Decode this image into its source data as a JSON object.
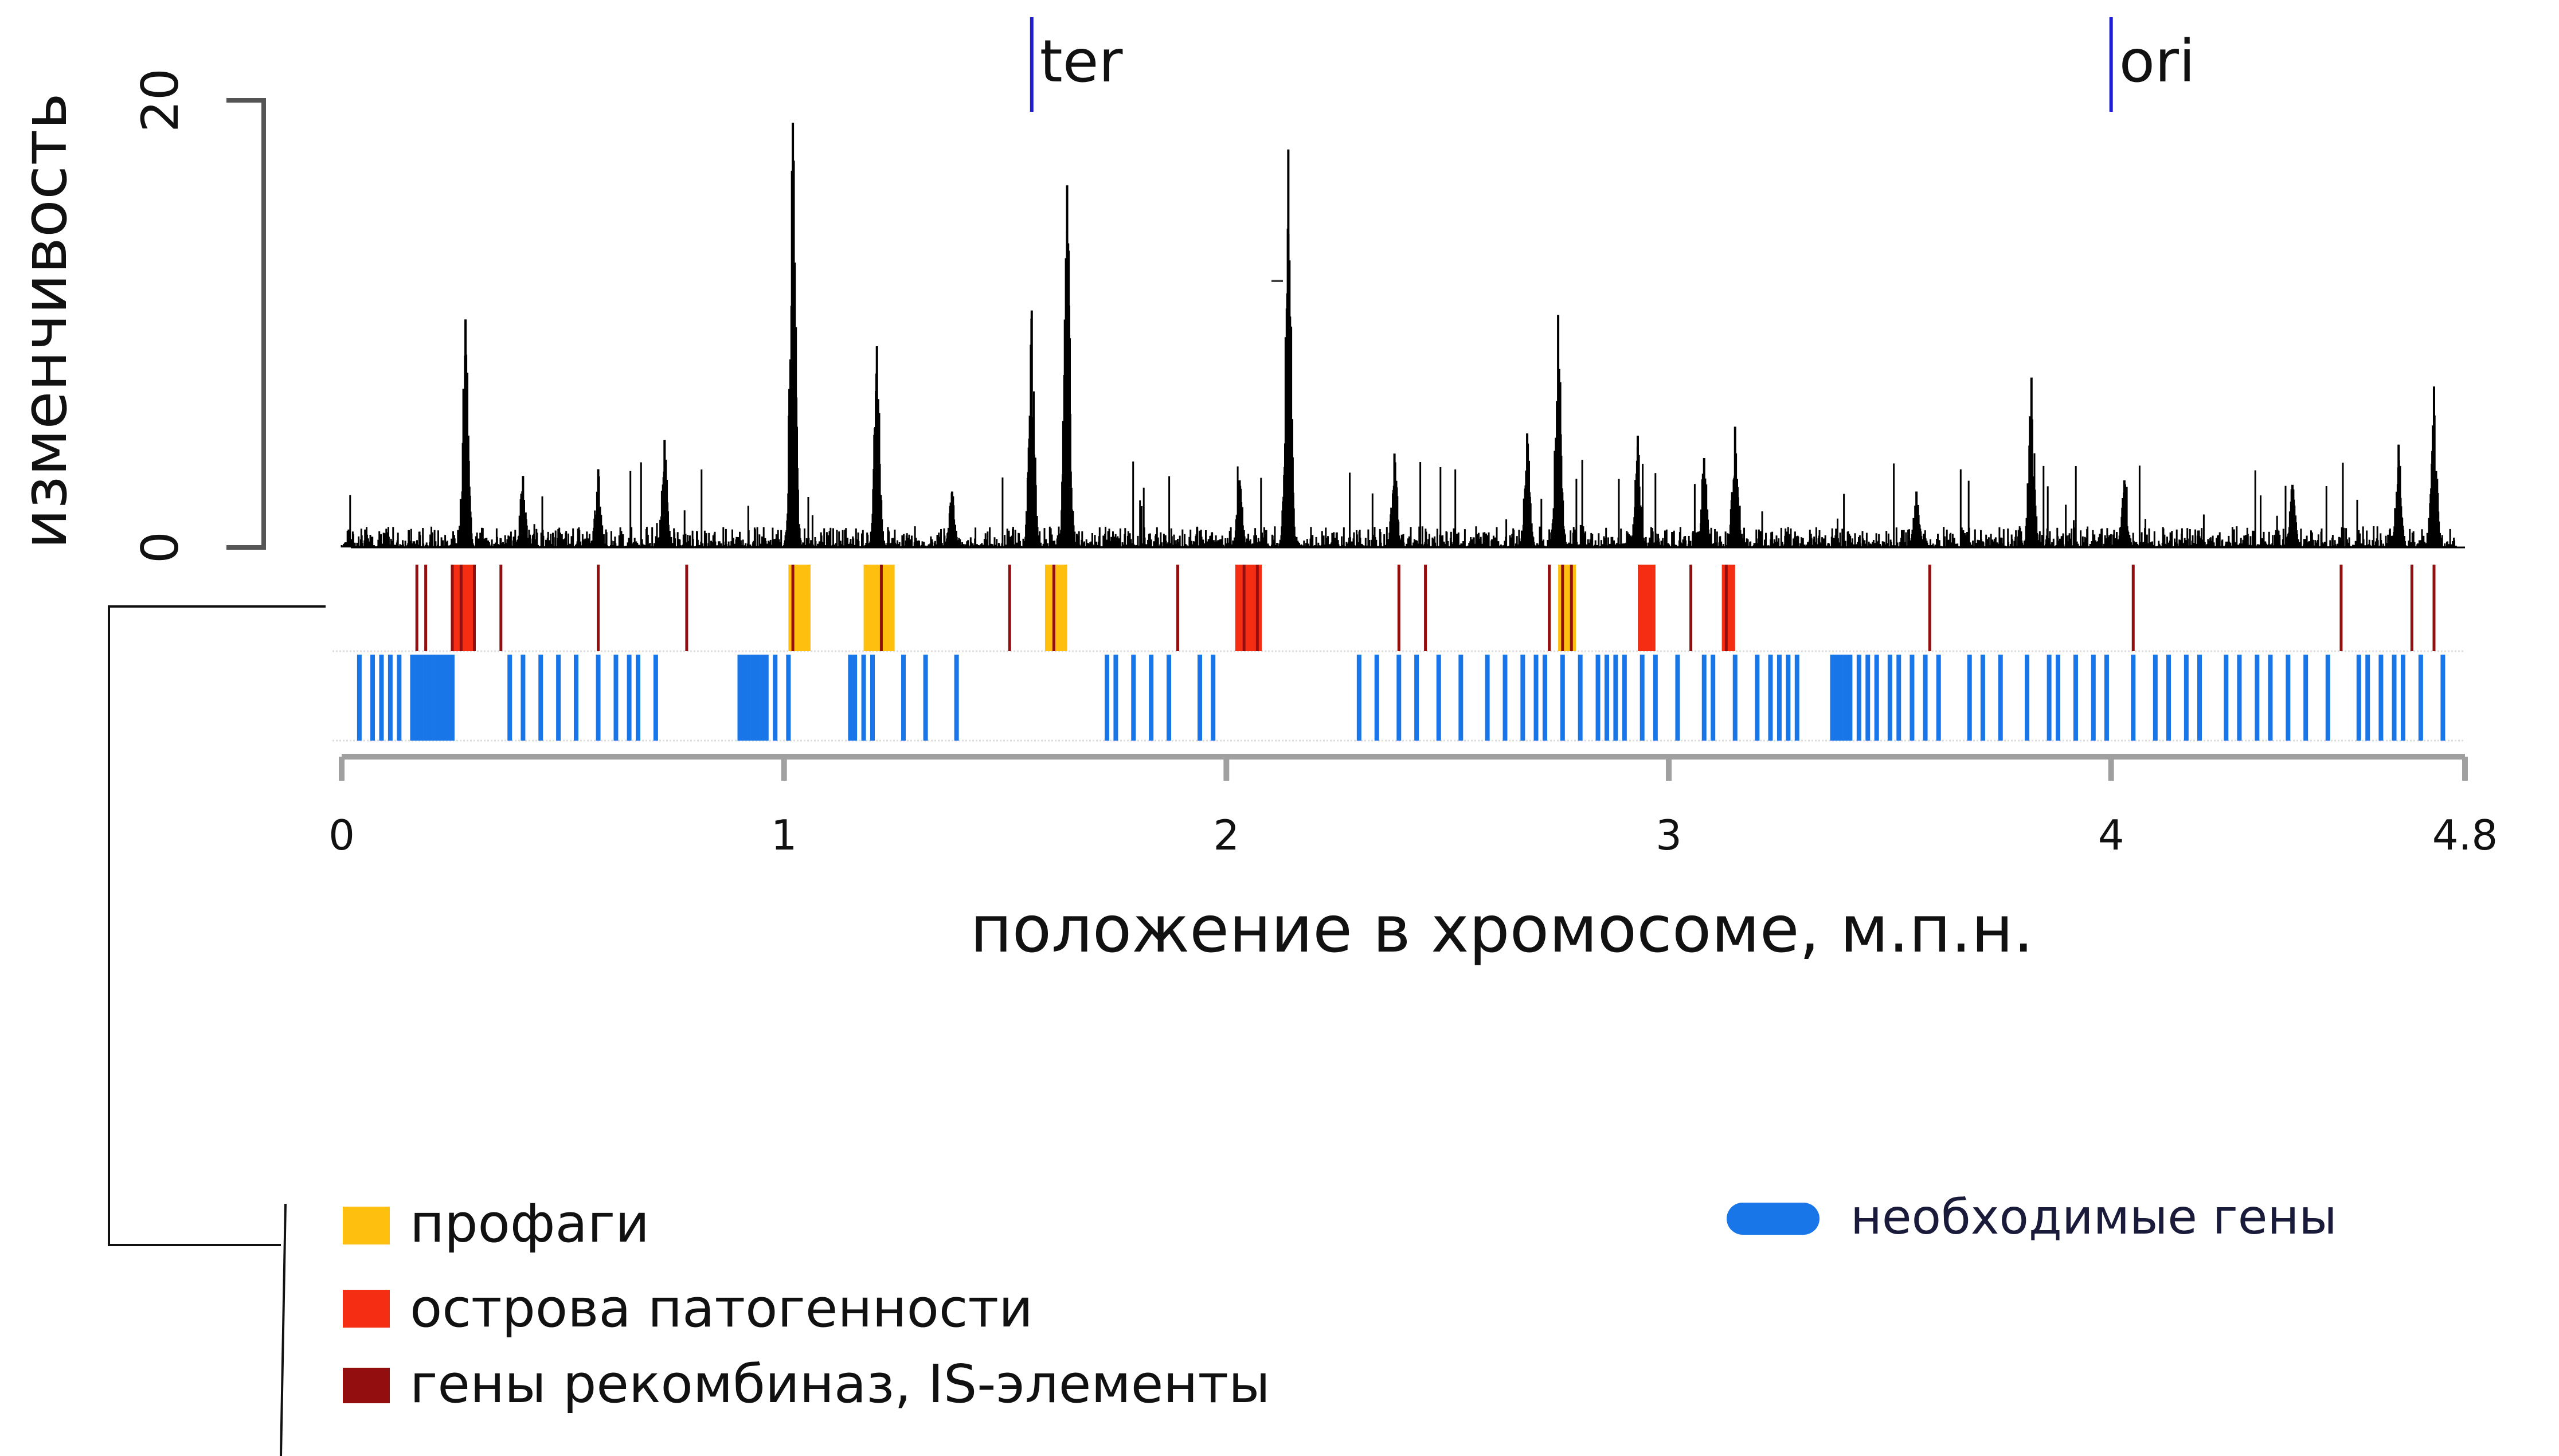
{
  "chart_data": {
    "type": "area",
    "title": "",
    "ylabel": "изменчивость",
    "xlabel": "положение в хромосоме, м.п.н.",
    "ylim": [
      0,
      20
    ],
    "xlim": [
      0,
      4.8
    ],
    "y_ticks": [
      {
        "value": 0,
        "label": "0"
      },
      {
        "value": 20,
        "label": "20"
      }
    ],
    "x_ticks": [
      {
        "value": 0,
        "label": "0"
      },
      {
        "value": 1,
        "label": "1"
      },
      {
        "value": 2,
        "label": "2"
      },
      {
        "value": 3,
        "label": "3"
      },
      {
        "value": 4,
        "label": "4"
      },
      {
        "value": 4.8,
        "label": "4.8"
      }
    ],
    "markers": [
      {
        "label": "ter",
        "x": 1.56
      },
      {
        "label": "ori",
        "x": 4.0
      }
    ],
    "peaks": [
      {
        "x": 0.28,
        "y": 10.2
      },
      {
        "x": 0.41,
        "y": 3.2
      },
      {
        "x": 0.58,
        "y": 3.5
      },
      {
        "x": 0.73,
        "y": 4.8
      },
      {
        "x": 1.02,
        "y": 19.0
      },
      {
        "x": 1.21,
        "y": 9.0
      },
      {
        "x": 1.38,
        "y": 2.5
      },
      {
        "x": 1.56,
        "y": 10.6
      },
      {
        "x": 1.64,
        "y": 16.2
      },
      {
        "x": 2.03,
        "y": 3.0
      },
      {
        "x": 2.14,
        "y": 17.8
      },
      {
        "x": 2.38,
        "y": 4.2
      },
      {
        "x": 2.68,
        "y": 5.1
      },
      {
        "x": 2.75,
        "y": 10.4
      },
      {
        "x": 2.93,
        "y": 5.0
      },
      {
        "x": 3.08,
        "y": 4.0
      },
      {
        "x": 3.15,
        "y": 5.4
      },
      {
        "x": 3.56,
        "y": 2.5
      },
      {
        "x": 3.82,
        "y": 7.6
      },
      {
        "x": 4.03,
        "y": 3.0
      },
      {
        "x": 4.41,
        "y": 2.8
      },
      {
        "x": 4.65,
        "y": 4.6
      },
      {
        "x": 4.73,
        "y": 7.2
      }
    ],
    "prophages": [
      [
        1.01,
        1.06
      ],
      [
        1.18,
        1.25
      ],
      [
        1.59,
        1.64
      ],
      [
        2.75,
        2.79
      ]
    ],
    "pathogenicity_islands": [
      [
        0.25,
        0.3
      ],
      [
        2.02,
        2.08
      ],
      [
        2.93,
        2.97
      ],
      [
        3.12,
        3.15
      ]
    ],
    "recombinase_genes": [
      0.17,
      0.19,
      0.25,
      0.27,
      0.3,
      0.36,
      0.58,
      0.78,
      1.02,
      1.22,
      1.51,
      1.61,
      1.89,
      2.04,
      2.07,
      2.39,
      2.45,
      2.73,
      2.76,
      2.78,
      3.05,
      3.13,
      3.59,
      4.05,
      4.52,
      4.68,
      4.73
    ],
    "essential_genes": [
      0.04,
      0.07,
      0.09,
      0.11,
      0.13,
      0.16,
      0.17,
      0.18,
      0.19,
      0.2,
      0.21,
      0.22,
      0.23,
      0.24,
      0.25,
      0.38,
      0.41,
      0.45,
      0.49,
      0.53,
      0.58,
      0.62,
      0.65,
      0.67,
      0.71,
      0.9,
      0.91,
      0.92,
      0.93,
      0.94,
      0.95,
      0.96,
      0.98,
      1.01,
      1.15,
      1.16,
      1.18,
      1.2,
      1.27,
      1.32,
      1.39,
      1.73,
      1.75,
      1.79,
      1.83,
      1.87,
      1.94,
      1.97,
      2.3,
      2.34,
      2.39,
      2.43,
      2.48,
      2.53,
      2.59,
      2.63,
      2.67,
      2.7,
      2.72,
      2.76,
      2.8,
      2.84,
      2.86,
      2.88,
      2.9,
      2.94,
      2.97,
      3.02,
      3.08,
      3.1,
      3.15,
      3.2,
      3.23,
      3.25,
      3.27,
      3.29,
      3.37,
      3.38,
      3.39,
      3.4,
      3.41,
      3.43,
      3.45,
      3.47,
      3.5,
      3.52,
      3.55,
      3.58,
      3.61,
      3.68,
      3.71,
      3.75,
      3.81,
      3.86,
      3.88,
      3.92,
      3.96,
      3.99,
      4.05,
      4.1,
      4.13,
      4.17,
      4.2,
      4.26,
      4.29,
      4.33,
      4.36,
      4.4,
      4.44,
      4.49,
      4.56,
      4.58,
      4.61,
      4.64,
      4.66,
      4.7,
      4.75
    ]
  },
  "legend": {
    "prophages": {
      "label": "профаги",
      "color": "#ffbf0f"
    },
    "pathogenicity_islands": {
      "label": "острова патогенности",
      "color": "#f42d13"
    },
    "recombinase_genes": {
      "label": "гены рекомбиназ, IS-элементы",
      "color": "#930e0e"
    },
    "essential_genes": {
      "label": "необходимые гены",
      "color": "#1976e8"
    }
  },
  "colors": {
    "marker": "#1f1fd0",
    "signal": "#000000",
    "axis": "#a0a0a0",
    "yaxis": "#555555"
  }
}
